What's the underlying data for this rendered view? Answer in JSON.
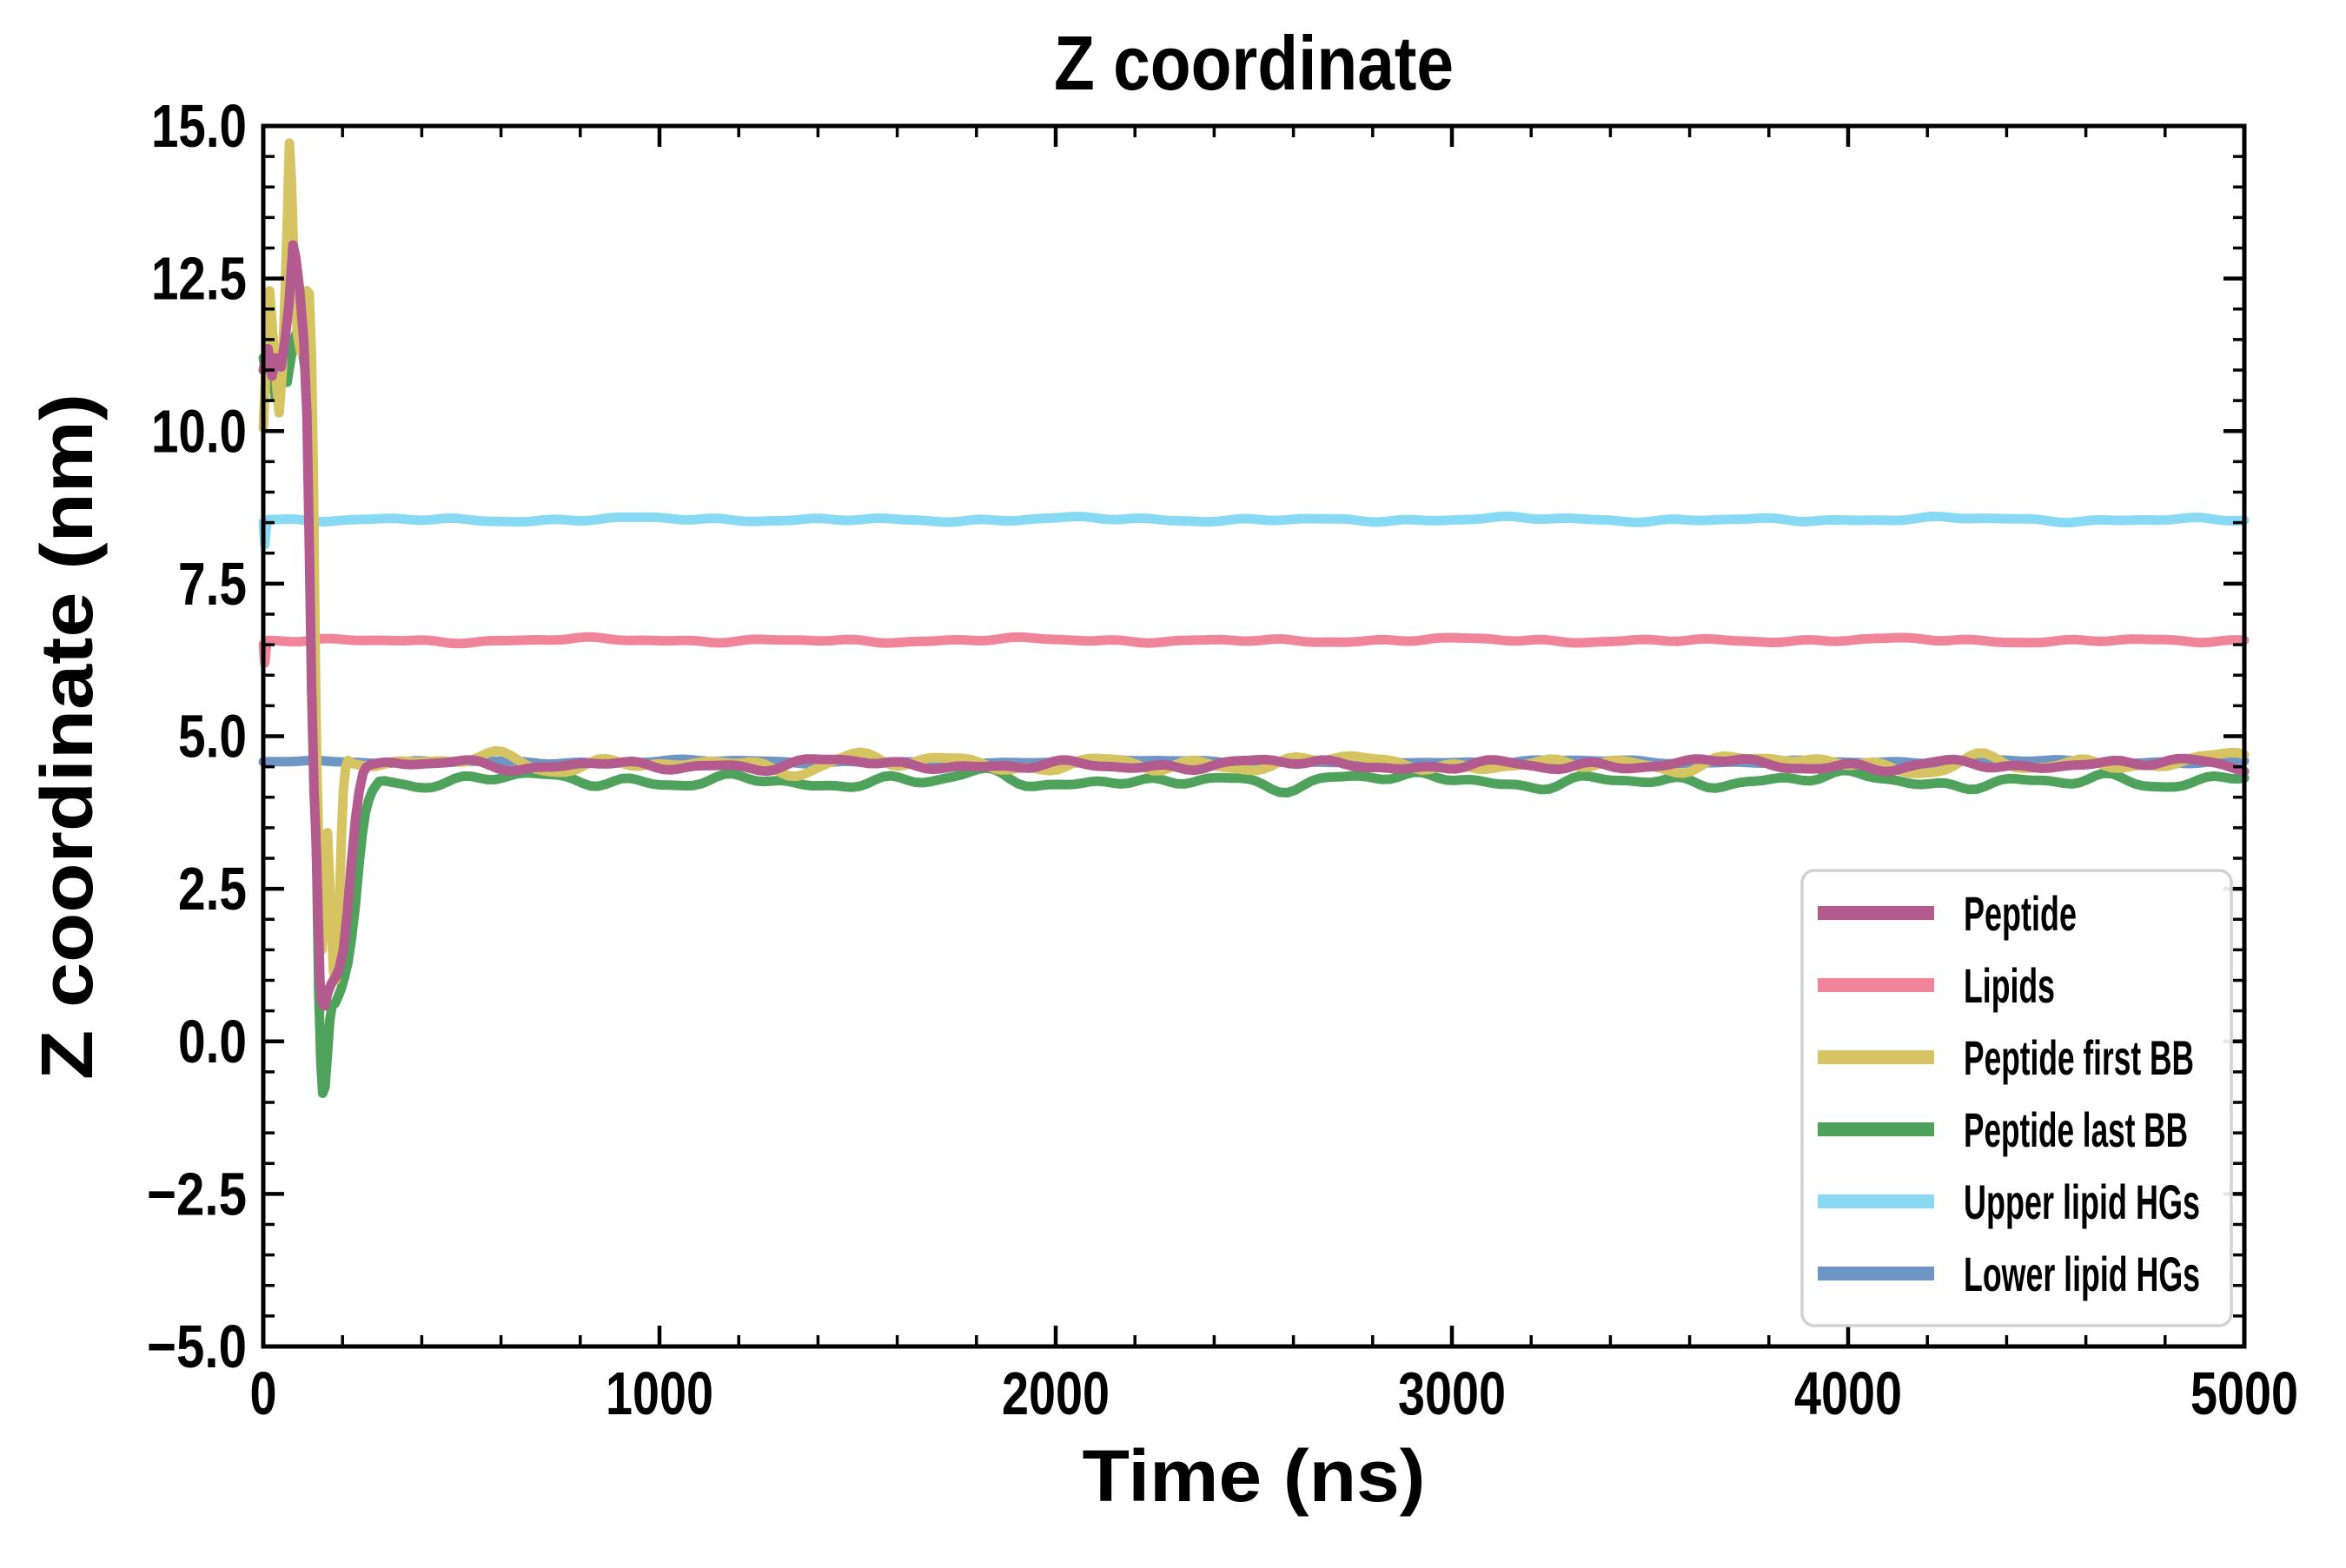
{
  "title": "Z coordinate",
  "axes": {
    "x": {
      "label": "Time (ns)",
      "min": 0,
      "max": 5000,
      "major_ticks": [
        0,
        1000,
        2000,
        3000,
        4000,
        5000
      ],
      "tick_labels": [
        "0",
        "1000",
        "2000",
        "3000",
        "4000",
        "5000"
      ],
      "minor_step": 200
    },
    "y": {
      "label": "Z coordinate (nm)",
      "min": -5,
      "max": 15,
      "major_ticks": [
        15,
        12.5,
        10,
        7.5,
        5,
        2.5,
        0,
        -2.5,
        -5
      ],
      "tick_labels": [
        "15.0",
        "12.5",
        "10.0",
        "7.5",
        "5.0",
        "2.5",
        "0.0",
        "−2.5",
        "−5.0"
      ],
      "minor_step": 0.5
    }
  },
  "legend": {
    "position": "lower right",
    "entries": [
      {
        "label": "Peptide",
        "color": "#b35a8f"
      },
      {
        "label": "Lipids",
        "color": "#f0859a"
      },
      {
        "label": "Peptide first BB",
        "color": "#d6c463"
      },
      {
        "label": "Peptide last BB",
        "color": "#4fa25c"
      },
      {
        "label": "Upper lipid HGs",
        "color": "#87d9f4"
      },
      {
        "label": "Lower lipid HGs",
        "color": "#6e95c3"
      }
    ]
  },
  "chart_data": {
    "type": "line",
    "title": "Z coordinate",
    "xlabel": "Time (ns)",
    "ylabel": "Z coordinate (nm)",
    "xlim": [
      0,
      5000
    ],
    "ylim": [
      -5,
      15
    ],
    "grid": false,
    "legend_position": "lower right",
    "sample_step_ns": 20,
    "series": [
      {
        "name": "Lower lipid HGs",
        "color": "#6e95c3",
        "anchors": [
          [
            0,
            4.58
          ]
        ],
        "steady": {
          "from": 0,
          "to": 5000,
          "mean": 4.58,
          "noise": 0.035,
          "slow": 0.0,
          "seed": 1
        }
      },
      {
        "name": "Upper lipid HGs",
        "color": "#87d9f4",
        "anchors": [
          [
            0,
            8.5
          ],
          [
            4,
            8.14
          ],
          [
            9,
            8.52
          ]
        ],
        "steady": {
          "from": 12,
          "to": 5000,
          "mean": 8.55,
          "noise": 0.042,
          "slow": 0.0,
          "seed": 2
        }
      },
      {
        "name": "Lipids",
        "color": "#f0859a",
        "anchors": [
          [
            0,
            6.5
          ],
          [
            4,
            6.2
          ],
          [
            9,
            6.54
          ]
        ],
        "steady": {
          "from": 12,
          "to": 5000,
          "mean": 6.57,
          "noise": 0.042,
          "slow": 0.0,
          "seed": 3
        }
      },
      {
        "name": "Peptide last BB",
        "color": "#4fa25c",
        "anchors": [
          [
            0,
            11.2
          ],
          [
            10,
            10.85
          ],
          [
            20,
            11.3
          ],
          [
            30,
            10.55
          ],
          [
            40,
            10.7
          ],
          [
            50,
            11.05
          ],
          [
            60,
            10.8
          ],
          [
            70,
            11.2
          ],
          [
            80,
            11.55
          ],
          [
            90,
            11.7
          ],
          [
            98,
            11.35
          ],
          [
            106,
            11.0
          ],
          [
            114,
            10.6
          ],
          [
            120,
            9.6
          ],
          [
            125,
            7.5
          ],
          [
            130,
            5.0
          ],
          [
            135,
            2.8
          ],
          [
            140,
            0.8
          ],
          [
            145,
            -0.3
          ],
          [
            150,
            -0.85
          ],
          [
            156,
            -0.75
          ],
          [
            162,
            -0.2
          ],
          [
            168,
            0.35
          ],
          [
            174,
            0.6
          ],
          [
            181,
            0.62
          ],
          [
            188,
            0.72
          ],
          [
            196,
            0.85
          ],
          [
            205,
            1.05
          ],
          [
            214,
            1.3
          ],
          [
            223,
            1.7
          ],
          [
            232,
            2.2
          ],
          [
            241,
            2.85
          ],
          [
            250,
            3.4
          ],
          [
            258,
            3.75
          ],
          [
            266,
            3.95
          ],
          [
            275,
            4.1
          ],
          [
            285,
            4.2
          ],
          [
            295,
            4.28
          ]
        ],
        "steady": {
          "from": 305,
          "to": 5000,
          "mean": 4.27,
          "noise": 0.13,
          "slow": 0.06,
          "seed": 4
        }
      },
      {
        "name": "Peptide first BB",
        "color": "#d6c463",
        "anchors": [
          [
            0,
            10.05
          ],
          [
            8,
            11.2
          ],
          [
            16,
            12.3
          ],
          [
            24,
            11.6
          ],
          [
            32,
            10.9
          ],
          [
            40,
            10.3
          ],
          [
            48,
            11.0
          ],
          [
            56,
            12.4
          ],
          [
            62,
            13.8
          ],
          [
            66,
            14.72
          ],
          [
            71,
            14.1
          ],
          [
            78,
            12.6
          ],
          [
            86,
            11.6
          ],
          [
            94,
            11.3
          ],
          [
            102,
            11.75
          ],
          [
            110,
            12.3
          ],
          [
            116,
            12.25
          ],
          [
            122,
            11.2
          ],
          [
            127,
            9.0
          ],
          [
            131,
            6.5
          ],
          [
            135,
            4.5
          ],
          [
            139,
            3.45
          ],
          [
            144,
            2.2
          ],
          [
            148,
            1.5
          ],
          [
            153,
            2.1
          ],
          [
            158,
            3.1
          ],
          [
            162,
            3.42
          ],
          [
            167,
            2.7
          ],
          [
            172,
            1.9
          ],
          [
            177,
            1.15
          ],
          [
            182,
            1.0
          ],
          [
            187,
            1.35
          ],
          [
            192,
            2.2
          ],
          [
            197,
            3.3
          ],
          [
            202,
            4.1
          ],
          [
            208,
            4.5
          ],
          [
            215,
            4.62
          ]
        ],
        "steady": {
          "from": 225,
          "to": 5000,
          "mean": 4.55,
          "noise": 0.13,
          "slow": 0.09,
          "seed": 5
        }
      },
      {
        "name": "Peptide",
        "color": "#b35a8f",
        "anchors": [
          [
            0,
            11.0
          ],
          [
            12,
            11.35
          ],
          [
            22,
            10.9
          ],
          [
            32,
            11.2
          ],
          [
            45,
            11.05
          ],
          [
            55,
            11.5
          ],
          [
            65,
            12.1
          ],
          [
            75,
            13.05
          ],
          [
            82,
            12.85
          ],
          [
            92,
            12.3
          ],
          [
            102,
            11.5
          ],
          [
            110,
            10.3
          ],
          [
            116,
            8.2
          ],
          [
            122,
            5.8
          ],
          [
            128,
            4.1
          ],
          [
            133,
            3.35
          ],
          [
            138,
            2.2
          ],
          [
            143,
            1.0
          ],
          [
            148,
            0.62
          ],
          [
            155,
            0.58
          ],
          [
            163,
            0.8
          ],
          [
            172,
            0.95
          ],
          [
            182,
            1.05
          ],
          [
            192,
            1.2
          ],
          [
            202,
            1.5
          ],
          [
            212,
            2.1
          ],
          [
            222,
            2.9
          ],
          [
            232,
            3.6
          ],
          [
            242,
            4.1
          ],
          [
            252,
            4.4
          ],
          [
            262,
            4.52
          ]
        ],
        "steady": {
          "from": 270,
          "to": 5000,
          "mean": 4.53,
          "noise": 0.095,
          "slow": 0.04,
          "seed": 6
        }
      }
    ]
  }
}
